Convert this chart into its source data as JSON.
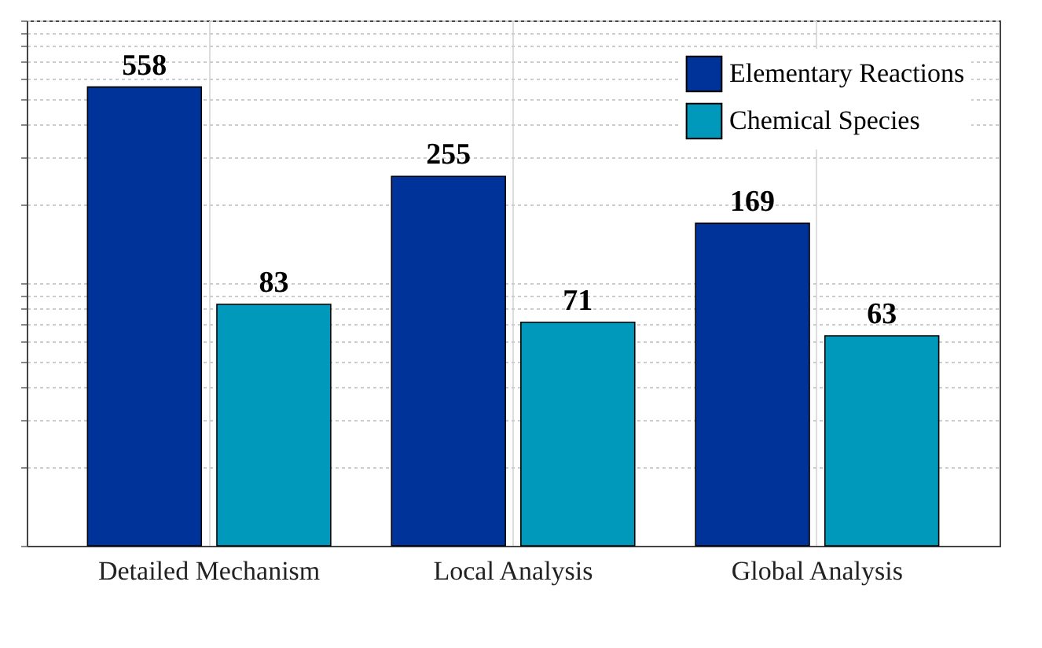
{
  "chart_data": {
    "type": "bar",
    "categories": [
      "Detailed Mechanism",
      "Local Analysis",
      "Global Analysis"
    ],
    "series": [
      {
        "name": "Elementary Reactions",
        "color": "#003399",
        "values": [
          558,
          255,
          169
        ]
      },
      {
        "name": "Chemical Species",
        "color": "#0099bb",
        "values": [
          83,
          71,
          63
        ]
      }
    ],
    "log": true,
    "ylim": [
      10,
      1000
    ],
    "yticks": [
      {
        "value": 10,
        "label": null
      },
      {
        "value": 20,
        "label": null
      },
      {
        "value": 30,
        "label": null
      },
      {
        "value": 40,
        "label": null
      },
      {
        "value": 50,
        "label": null
      },
      {
        "value": 60,
        "label": null
      },
      {
        "value": 70,
        "label": null
      },
      {
        "value": 80,
        "label": null
      },
      {
        "value": 90,
        "label": null
      },
      {
        "value": 100,
        "label": null
      },
      {
        "value": 200,
        "label": null
      },
      {
        "value": 300,
        "label": null
      },
      {
        "value": 400,
        "label": null
      },
      {
        "value": 500,
        "label": null
      },
      {
        "value": 600,
        "label": null
      },
      {
        "value": 700,
        "label": null
      },
      {
        "value": 800,
        "label": null
      },
      {
        "value": 900,
        "label": null
      },
      {
        "value": 1000,
        "label": null
      }
    ],
    "tick_labels": "x",
    "grid": true,
    "legend": "top right",
    "data_labels": true
  }
}
